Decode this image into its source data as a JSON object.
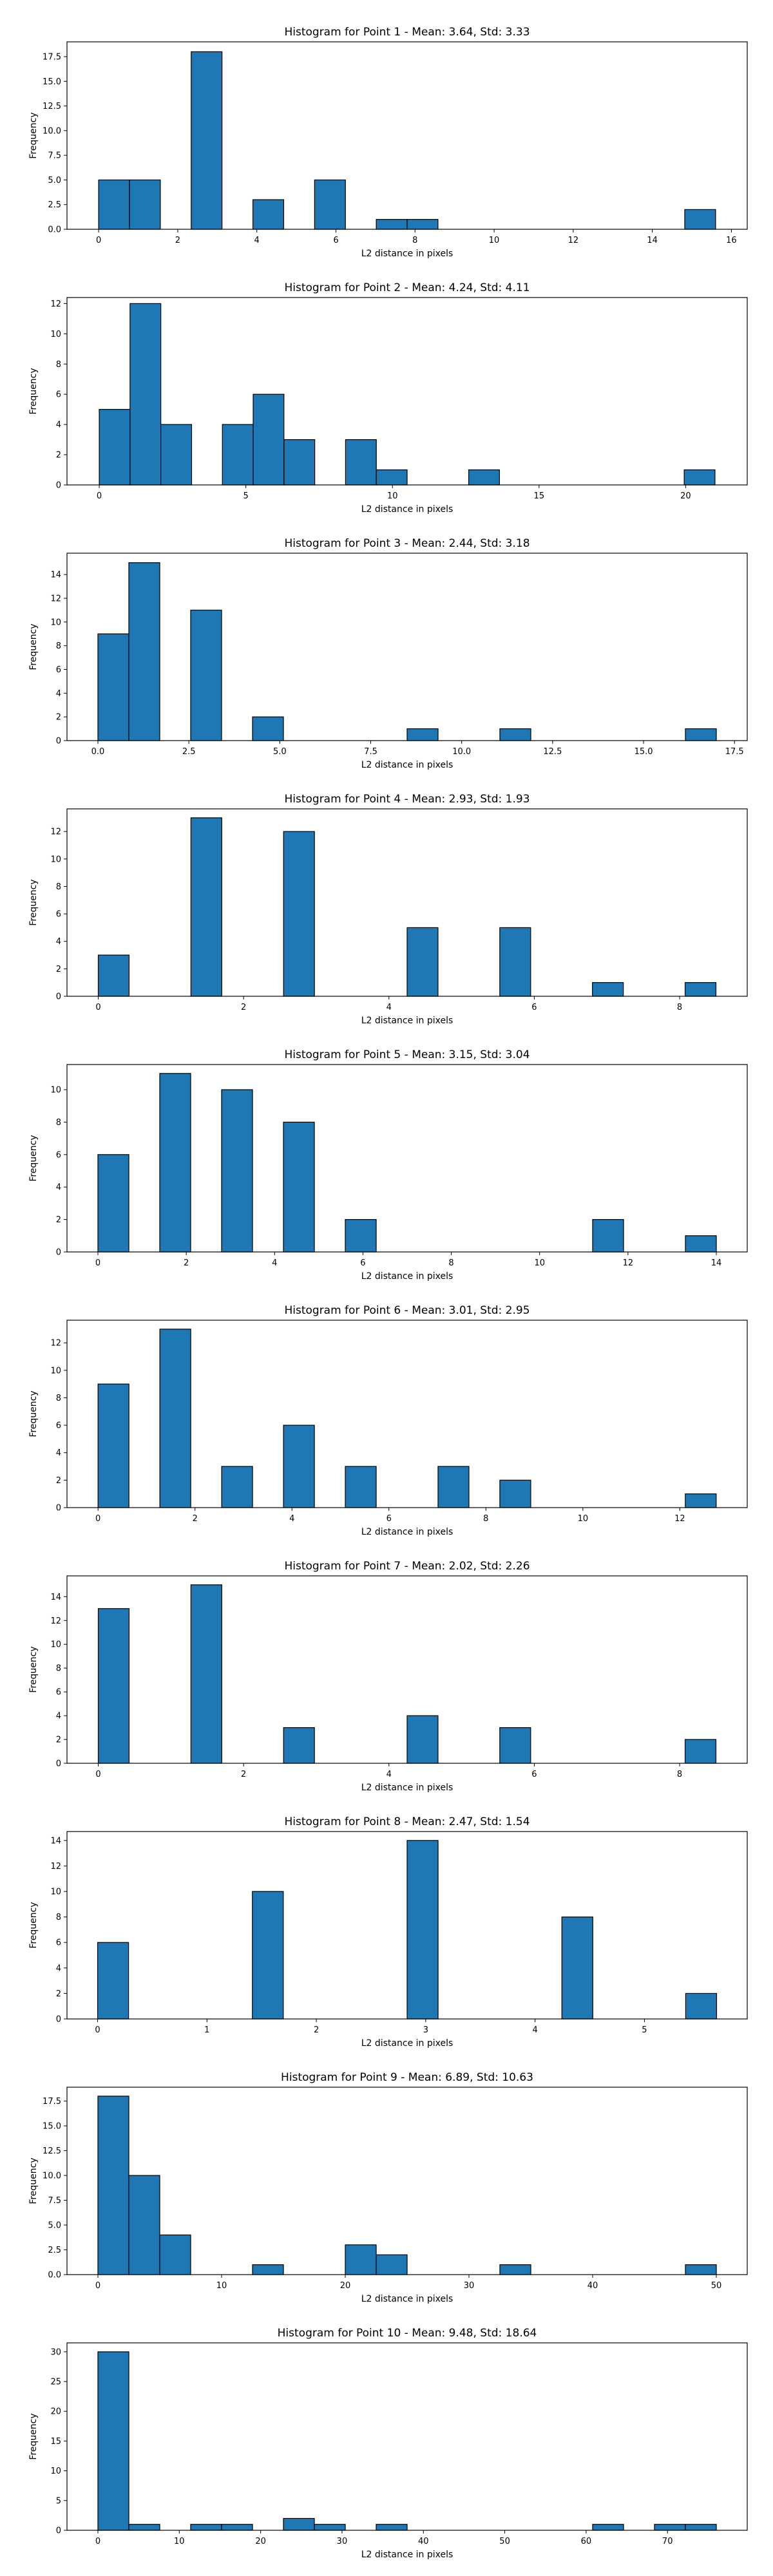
{
  "style": {
    "bar_color": "#1f77b4",
    "edge_color": "#000000",
    "axes_color": "#000000"
  },
  "chart_data": [
    {
      "type": "bar",
      "title": "Histogram for Point 1 - Mean: 3.64, Std: 3.33",
      "xlabel": "L2 distance in pixels",
      "ylabel": "Frequency",
      "xlim": [
        -0.8,
        16.4
      ],
      "ylim": [
        0,
        19
      ],
      "xticks": [
        0,
        2,
        4,
        6,
        8,
        10,
        12,
        14,
        16
      ],
      "yticks": [
        0.0,
        2.5,
        5.0,
        7.5,
        10.0,
        12.5,
        15.0,
        17.5
      ],
      "ytick_labels": [
        "0.0",
        "2.5",
        "5.0",
        "7.5",
        "10.0",
        "12.5",
        "15.0",
        "17.5"
      ],
      "bins": [
        {
          "x0": 0.0,
          "x1": 0.78,
          "count": 5
        },
        {
          "x0": 0.78,
          "x1": 1.56,
          "count": 5
        },
        {
          "x0": 2.34,
          "x1": 3.12,
          "count": 18
        },
        {
          "x0": 3.9,
          "x1": 4.68,
          "count": 3
        },
        {
          "x0": 5.46,
          "x1": 6.24,
          "count": 5
        },
        {
          "x0": 7.02,
          "x1": 7.8,
          "count": 1
        },
        {
          "x0": 7.8,
          "x1": 8.58,
          "count": 1
        },
        {
          "x0": 14.82,
          "x1": 15.6,
          "count": 2
        }
      ]
    },
    {
      "type": "bar",
      "title": "Histogram for Point 2 - Mean: 4.24, Std: 4.11",
      "xlabel": "L2 distance in pixels",
      "ylabel": "Frequency",
      "xlim": [
        -1.1,
        22.1
      ],
      "ylim": [
        0,
        12.4
      ],
      "xticks": [
        0,
        5,
        10,
        15,
        20
      ],
      "yticks": [
        0,
        2,
        4,
        6,
        8,
        10,
        12
      ],
      "ytick_labels": [
        "0",
        "2",
        "4",
        "6",
        "8",
        "10",
        "12"
      ],
      "bins": [
        {
          "x0": 0.0,
          "x1": 1.05,
          "count": 5
        },
        {
          "x0": 1.05,
          "x1": 2.1,
          "count": 12
        },
        {
          "x0": 2.1,
          "x1": 3.15,
          "count": 4
        },
        {
          "x0": 4.2,
          "x1": 5.25,
          "count": 4
        },
        {
          "x0": 5.25,
          "x1": 6.3,
          "count": 6
        },
        {
          "x0": 6.3,
          "x1": 7.35,
          "count": 3
        },
        {
          "x0": 8.4,
          "x1": 9.45,
          "count": 3
        },
        {
          "x0": 9.45,
          "x1": 10.5,
          "count": 1
        },
        {
          "x0": 12.6,
          "x1": 13.65,
          "count": 1
        },
        {
          "x0": 19.95,
          "x1": 21.0,
          "count": 1
        }
      ]
    },
    {
      "type": "bar",
      "title": "Histogram for Point 3 - Mean: 2.44, Std: 3.18",
      "xlabel": "L2 distance in pixels",
      "ylabel": "Frequency",
      "xlim": [
        -0.85,
        17.85
      ],
      "ylim": [
        0,
        15.8
      ],
      "xticks": [
        0.0,
        2.5,
        5.0,
        7.5,
        10.0,
        12.5,
        15.0,
        17.5
      ],
      "xtick_labels": [
        "0.0",
        "2.5",
        "5.0",
        "7.5",
        "10.0",
        "12.5",
        "15.0",
        "17.5"
      ],
      "yticks": [
        0,
        2,
        4,
        6,
        8,
        10,
        12,
        14
      ],
      "ytick_labels": [
        "0",
        "2",
        "4",
        "6",
        "8",
        "10",
        "12",
        "14"
      ],
      "bins": [
        {
          "x0": 0.0,
          "x1": 0.85,
          "count": 9
        },
        {
          "x0": 0.85,
          "x1": 1.7,
          "count": 15
        },
        {
          "x0": 2.55,
          "x1": 3.4,
          "count": 11
        },
        {
          "x0": 4.25,
          "x1": 5.1,
          "count": 2
        },
        {
          "x0": 8.5,
          "x1": 9.35,
          "count": 1
        },
        {
          "x0": 11.05,
          "x1": 11.9,
          "count": 1
        },
        {
          "x0": 16.15,
          "x1": 17.0,
          "count": 1
        }
      ]
    },
    {
      "type": "bar",
      "title": "Histogram for Point 4 - Mean: 2.93, Std: 1.93",
      "xlabel": "L2 distance in pixels",
      "ylabel": "Frequency",
      "xlim": [
        -0.43,
        8.93
      ],
      "ylim": [
        0,
        13.65
      ],
      "xticks": [
        0,
        2,
        4,
        6,
        8
      ],
      "yticks": [
        0,
        2,
        4,
        6,
        8,
        10,
        12
      ],
      "ytick_labels": [
        "0",
        "2",
        "4",
        "6",
        "8",
        "10",
        "12"
      ],
      "bins": [
        {
          "x0": 0.0,
          "x1": 0.425,
          "count": 3
        },
        {
          "x0": 1.275,
          "x1": 1.7,
          "count": 13
        },
        {
          "x0": 2.55,
          "x1": 2.975,
          "count": 12
        },
        {
          "x0": 4.25,
          "x1": 4.675,
          "count": 5
        },
        {
          "x0": 5.525,
          "x1": 5.95,
          "count": 5
        },
        {
          "x0": 6.8,
          "x1": 7.225,
          "count": 1
        },
        {
          "x0": 8.075,
          "x1": 8.5,
          "count": 1
        }
      ]
    },
    {
      "type": "bar",
      "title": "Histogram for Point 5 - Mean: 3.15, Std: 3.04",
      "xlabel": "L2 distance in pixels",
      "ylabel": "Frequency",
      "xlim": [
        -0.7,
        14.7
      ],
      "ylim": [
        0,
        11.55
      ],
      "xticks": [
        0,
        2,
        4,
        6,
        8,
        10,
        12,
        14
      ],
      "yticks": [
        0,
        2,
        4,
        6,
        8,
        10
      ],
      "ytick_labels": [
        "0",
        "2",
        "4",
        "6",
        "8",
        "10"
      ],
      "bins": [
        {
          "x0": 0.0,
          "x1": 0.7,
          "count": 6
        },
        {
          "x0": 1.4,
          "x1": 2.1,
          "count": 11
        },
        {
          "x0": 2.8,
          "x1": 3.5,
          "count": 10
        },
        {
          "x0": 4.2,
          "x1": 4.9,
          "count": 8
        },
        {
          "x0": 5.6,
          "x1": 6.3,
          "count": 2
        },
        {
          "x0": 11.2,
          "x1": 11.9,
          "count": 2
        },
        {
          "x0": 13.3,
          "x1": 14.0,
          "count": 1
        }
      ]
    },
    {
      "type": "bar",
      "title": "Histogram for Point 6 - Mean: 3.01, Std: 2.95",
      "xlabel": "L2 distance in pixels",
      "ylabel": "Frequency",
      "xlim": [
        -0.64,
        13.39
      ],
      "ylim": [
        0,
        13.65
      ],
      "xticks": [
        0,
        2,
        4,
        6,
        8,
        10,
        12
      ],
      "yticks": [
        0,
        2,
        4,
        6,
        8,
        10,
        12
      ],
      "ytick_labels": [
        "0",
        "2",
        "4",
        "6",
        "8",
        "10",
        "12"
      ],
      "bins": [
        {
          "x0": 0.0,
          "x1": 0.6375,
          "count": 9
        },
        {
          "x0": 1.275,
          "x1": 1.9125,
          "count": 13
        },
        {
          "x0": 2.55,
          "x1": 3.1875,
          "count": 3
        },
        {
          "x0": 3.825,
          "x1": 4.4625,
          "count": 6
        },
        {
          "x0": 5.1,
          "x1": 5.7375,
          "count": 3
        },
        {
          "x0": 7.0125,
          "x1": 7.65,
          "count": 3
        },
        {
          "x0": 8.2875,
          "x1": 8.925,
          "count": 2
        },
        {
          "x0": 12.1125,
          "x1": 12.75,
          "count": 1
        }
      ]
    },
    {
      "type": "bar",
      "title": "Histogram for Point 7 - Mean: 2.02, Std: 2.26",
      "xlabel": "L2 distance in pixels",
      "ylabel": "Frequency",
      "xlim": [
        -0.43,
        8.93
      ],
      "ylim": [
        0,
        15.75
      ],
      "xticks": [
        0,
        2,
        4,
        6,
        8
      ],
      "yticks": [
        0,
        2,
        4,
        6,
        8,
        10,
        12,
        14
      ],
      "ytick_labels": [
        "0",
        "2",
        "4",
        "6",
        "8",
        "10",
        "12",
        "14"
      ],
      "bins": [
        {
          "x0": 0.0,
          "x1": 0.425,
          "count": 13
        },
        {
          "x0": 1.275,
          "x1": 1.7,
          "count": 15
        },
        {
          "x0": 2.55,
          "x1": 2.975,
          "count": 3
        },
        {
          "x0": 4.25,
          "x1": 4.675,
          "count": 4
        },
        {
          "x0": 5.525,
          "x1": 5.95,
          "count": 3
        },
        {
          "x0": 8.075,
          "x1": 8.5,
          "count": 2
        }
      ]
    },
    {
      "type": "bar",
      "title": "Histogram for Point 8 - Mean: 2.47, Std: 1.54",
      "xlabel": "L2 distance in pixels",
      "ylabel": "Frequency",
      "xlim": [
        -0.28,
        5.94
      ],
      "ylim": [
        0,
        14.7
      ],
      "xticks": [
        0,
        1,
        2,
        3,
        4,
        5
      ],
      "yticks": [
        0,
        2,
        4,
        6,
        8,
        10,
        12,
        14
      ],
      "ytick_labels": [
        "0",
        "2",
        "4",
        "6",
        "8",
        "10",
        "12",
        "14"
      ],
      "bins": [
        {
          "x0": 0.0,
          "x1": 0.283,
          "count": 6
        },
        {
          "x0": 1.415,
          "x1": 1.698,
          "count": 10
        },
        {
          "x0": 2.83,
          "x1": 3.113,
          "count": 14
        },
        {
          "x0": 4.245,
          "x1": 4.528,
          "count": 8
        },
        {
          "x0": 5.377,
          "x1": 5.66,
          "count": 2
        }
      ]
    },
    {
      "type": "bar",
      "title": "Histogram for Point 9 - Mean: 6.89, Std: 10.63",
      "xlabel": "L2 distance in pixels",
      "ylabel": "Frequency",
      "xlim": [
        -2.5,
        52.5
      ],
      "ylim": [
        0,
        18.9
      ],
      "xticks": [
        0,
        10,
        20,
        30,
        40,
        50
      ],
      "yticks": [
        0.0,
        2.5,
        5.0,
        7.5,
        10.0,
        12.5,
        15.0,
        17.5
      ],
      "ytick_labels": [
        "0.0",
        "2.5",
        "5.0",
        "7.5",
        "10.0",
        "12.5",
        "15.0",
        "17.5"
      ],
      "bins": [
        {
          "x0": 0.0,
          "x1": 2.5,
          "count": 18
        },
        {
          "x0": 2.5,
          "x1": 5.0,
          "count": 10
        },
        {
          "x0": 5.0,
          "x1": 7.5,
          "count": 4
        },
        {
          "x0": 12.5,
          "x1": 15.0,
          "count": 1
        },
        {
          "x0": 20.0,
          "x1": 22.5,
          "count": 3
        },
        {
          "x0": 22.5,
          "x1": 25.0,
          "count": 2
        },
        {
          "x0": 32.5,
          "x1": 35.0,
          "count": 1
        },
        {
          "x0": 47.5,
          "x1": 50.0,
          "count": 1
        }
      ]
    },
    {
      "type": "bar",
      "title": "Histogram for Point 10 - Mean: 9.48, Std: 18.64",
      "xlabel": "L2 distance in pixels",
      "ylabel": "Frequency",
      "xlim": [
        -3.8,
        79.8
      ],
      "ylim": [
        0,
        31.5
      ],
      "xticks": [
        0,
        10,
        20,
        30,
        40,
        50,
        60,
        70
      ],
      "yticks": [
        0,
        5,
        10,
        15,
        20,
        25,
        30
      ],
      "ytick_labels": [
        "0",
        "5",
        "10",
        "15",
        "20",
        "25",
        "30"
      ],
      "bins": [
        {
          "x0": 0.0,
          "x1": 3.8,
          "count": 30
        },
        {
          "x0": 3.8,
          "x1": 7.6,
          "count": 1
        },
        {
          "x0": 11.4,
          "x1": 15.2,
          "count": 1
        },
        {
          "x0": 15.2,
          "x1": 19.0,
          "count": 1
        },
        {
          "x0": 22.8,
          "x1": 26.6,
          "count": 2
        },
        {
          "x0": 26.6,
          "x1": 30.4,
          "count": 1
        },
        {
          "x0": 34.2,
          "x1": 38.0,
          "count": 1
        },
        {
          "x0": 60.8,
          "x1": 64.6,
          "count": 1
        },
        {
          "x0": 68.4,
          "x1": 72.2,
          "count": 1
        },
        {
          "x0": 72.2,
          "x1": 76.0,
          "count": 1
        }
      ]
    }
  ]
}
